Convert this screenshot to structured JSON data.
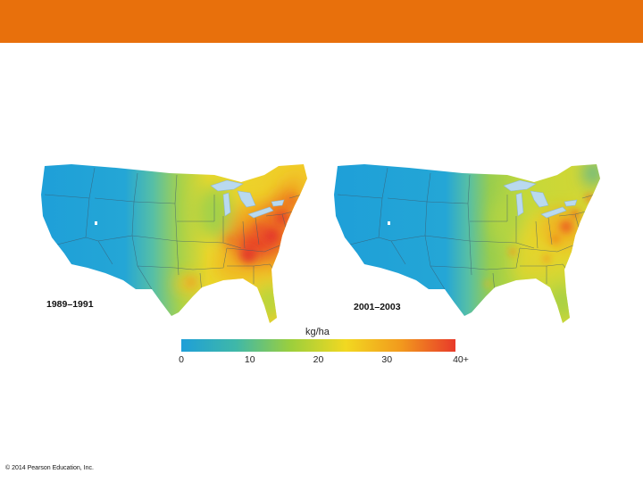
{
  "slide": {
    "copyright": "© 2014 Pearson Education, Inc."
  },
  "maps": [
    {
      "period": "1989–1991"
    },
    {
      "period": "2001–2003"
    }
  ],
  "legend": {
    "unit": "kg/ha",
    "ticks": [
      "0",
      "10",
      "20",
      "30",
      "40+"
    ],
    "tick_values": [
      0,
      10,
      20,
      30,
      40
    ],
    "colors": [
      "#1e9fd8",
      "#3fb8a8",
      "#9ccf3c",
      "#f2d821",
      "#f29a1d",
      "#e83a2a"
    ]
  },
  "colors": {
    "header": "#e8700c",
    "lakes": "#b9d9ef",
    "state_borders": "#3c5a6e"
  }
}
